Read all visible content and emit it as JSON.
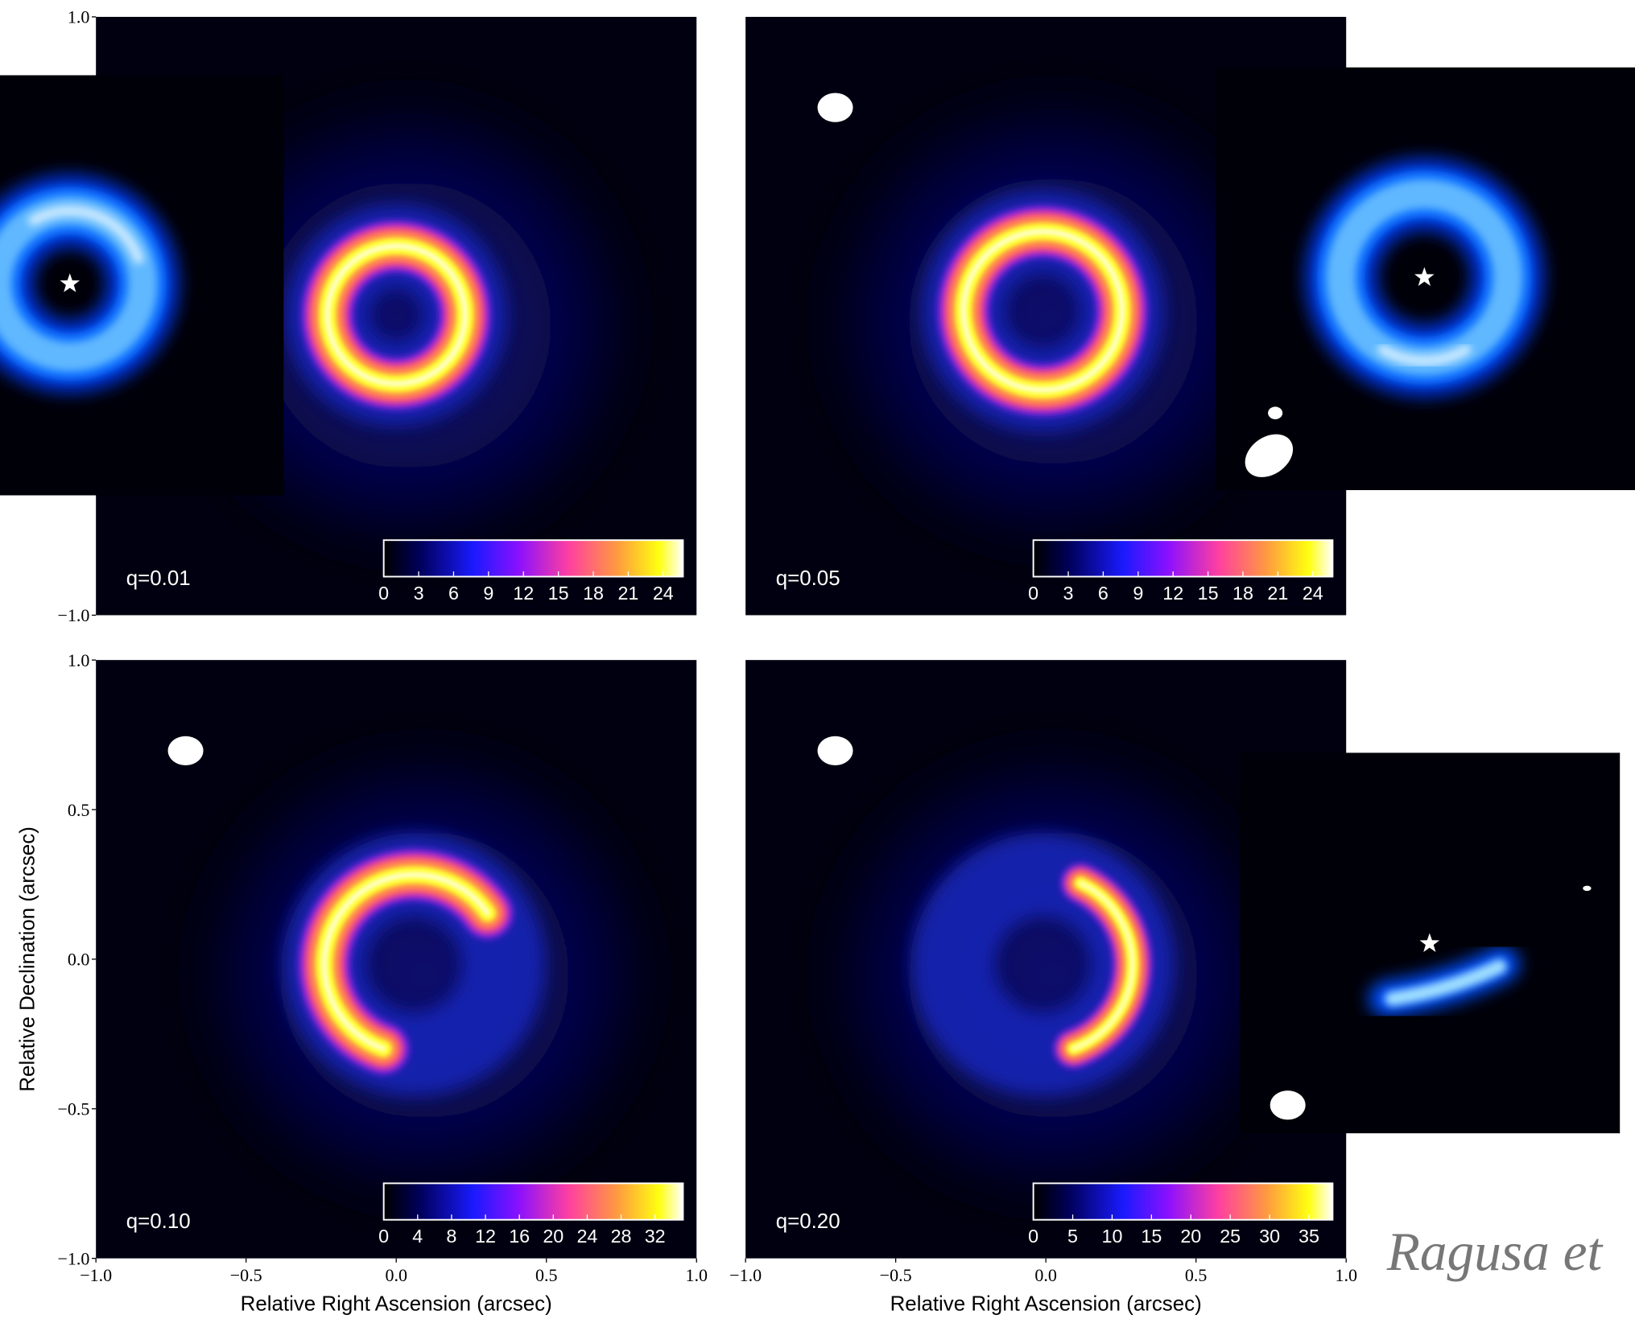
{
  "figure": {
    "x_axis_label": "Relative Right Ascension (arcsec)",
    "y_axis_label": "Relative Declination (arcsec)",
    "xlim": [
      -1,
      1
    ],
    "ylim": [
      -1,
      1
    ],
    "xticks": [
      {
        "value": -1,
        "label": "−1.0"
      },
      {
        "value": -0.5,
        "label": "−0.5"
      },
      {
        "value": 0,
        "label": "0.0"
      },
      0.5,
      {
        "value": 1,
        "label": "1.0"
      }
    ],
    "yticks": [
      {
        "value": -1,
        "label": "−1.0"
      },
      {
        "value": -0.5,
        "label": "−0.5"
      },
      {
        "value": 0,
        "label": "0.0"
      },
      0.5,
      {
        "value": 1,
        "label": "1.0"
      }
    ],
    "panels": [
      {
        "label": "q=0.01",
        "colorbar": {
          "clim": [
            0,
            25.7
          ],
          "ticks": [
            0,
            3,
            6,
            9,
            12,
            15,
            18,
            21,
            24
          ]
        }
      },
      {
        "label": "q=0.05",
        "colorbar": {
          "clim": [
            0,
            25.7
          ],
          "ticks": [
            0,
            3,
            6,
            9,
            12,
            15,
            18,
            21,
            24
          ]
        }
      },
      {
        "label": "q=0.10",
        "colorbar": {
          "clim": [
            0,
            35.3
          ],
          "ticks": [
            0,
            4,
            8,
            12,
            16,
            20,
            24,
            28,
            32
          ]
        }
      },
      {
        "label": "q=0.20",
        "colorbar": {
          "clim": [
            0,
            38
          ],
          "ticks": [
            0,
            5,
            10,
            15,
            20,
            25,
            30,
            35
          ]
        }
      }
    ],
    "annotation": "Ragusa et"
  }
}
